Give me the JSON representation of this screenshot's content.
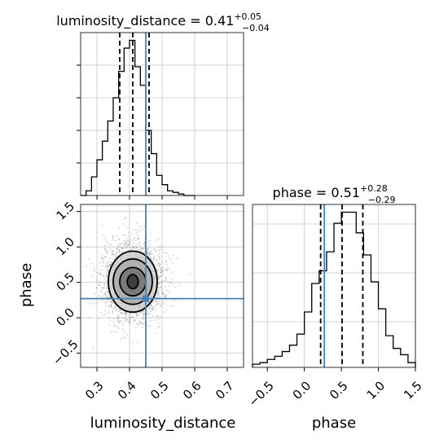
{
  "chart_data": [
    {
      "panel": "luminosity_distance marginal",
      "type": "histogram",
      "title": {
        "prefix": "luminosity_distance = ",
        "value": "0.41",
        "upper": "+0.05",
        "lower": "−0.04"
      },
      "x": {
        "label": "luminosity_distance",
        "range": [
          0.25,
          0.75
        ],
        "ticks": [
          0.3,
          0.4,
          0.5,
          0.6,
          0.7
        ],
        "tick_labels": [
          "0.3",
          "0.4",
          "0.5",
          "0.6",
          "0.7"
        ]
      },
      "bin_edges": [
        0.25,
        0.26667,
        0.28333,
        0.3,
        0.31667,
        0.33333,
        0.35,
        0.36667,
        0.38333,
        0.4,
        0.41667,
        0.43333,
        0.45,
        0.46667,
        0.48333,
        0.5,
        0.51667,
        0.53333,
        0.55,
        0.56667,
        0.58333,
        0.6
      ],
      "counts": [
        0,
        0.03,
        0.12,
        0.23,
        0.35,
        0.48,
        0.63,
        0.8,
        0.95,
        1.0,
        0.83,
        0.71,
        0.42,
        0.27,
        0.13,
        0.07,
        0.03,
        0.02,
        0.01,
        0,
        0
      ],
      "quantiles": [
        0.37,
        0.41,
        0.46
      ],
      "truth": 0.45,
      "grid": true
    },
    {
      "panel": "phase vs luminosity_distance joint",
      "type": "scatter",
      "x": {
        "label": "luminosity_distance",
        "range": [
          0.25,
          0.75
        ],
        "ticks": [
          0.3,
          0.4,
          0.5,
          0.6,
          0.7
        ],
        "tick_labels": [
          "0.3",
          "0.4",
          "0.5",
          "0.6",
          "0.7"
        ]
      },
      "y": {
        "label": "phase",
        "range": [
          -0.7,
          1.6
        ],
        "ticks": [
          -0.5,
          0.0,
          0.5,
          1.0,
          1.5
        ],
        "tick_labels": [
          "−0.5",
          "0.0",
          "0.5",
          "1.0",
          "1.5"
        ]
      },
      "center": [
        0.41,
        0.51
      ],
      "spread": [
        0.045,
        0.27
      ],
      "contours": [
        {
          "rx": 0.017,
          "ry": 0.1
        },
        {
          "rx": 0.04,
          "ry": 0.2
        },
        {
          "rx": 0.06,
          "ry": 0.32
        },
        {
          "rx": 0.075,
          "ry": 0.43
        }
      ],
      "truth": [
        0.45,
        0.27
      ],
      "grid": true
    },
    {
      "panel": "phase marginal",
      "type": "histogram",
      "title": {
        "prefix": "phase = ",
        "value": "0.51",
        "upper": "+0.28",
        "lower": "−0.29"
      },
      "x": {
        "label": "phase",
        "range": [
          -0.7,
          1.5
        ],
        "ticks": [
          -0.5,
          0.0,
          0.5,
          1.0,
          1.5
        ],
        "tick_labels": [
          "−0.5",
          "0.0",
          "0.5",
          "1.0",
          "1.5"
        ]
      },
      "bin_edges": [
        -0.7,
        -0.6,
        -0.5,
        -0.4,
        -0.3,
        -0.2,
        -0.1,
        0.0,
        0.1,
        0.2,
        0.3,
        0.4,
        0.5,
        0.6,
        0.7,
        0.8,
        0.9,
        1.0,
        1.1,
        1.2,
        1.3,
        1.4,
        1.5
      ],
      "counts": [
        0.02,
        0.03,
        0.05,
        0.07,
        0.1,
        0.14,
        0.21,
        0.35,
        0.53,
        0.61,
        0.73,
        0.91,
        0.98,
        0.98,
        0.85,
        0.71,
        0.54,
        0.37,
        0.2,
        0.12,
        0.08,
        0.03
      ],
      "quantiles": [
        0.22,
        0.51,
        0.79
      ],
      "truth": 0.27,
      "grid": true
    }
  ],
  "colors": {
    "hist": "#000000",
    "quantile": "#000000",
    "truth": "#4682b4",
    "grid": "#c8c8c8",
    "contour": "#000000"
  }
}
